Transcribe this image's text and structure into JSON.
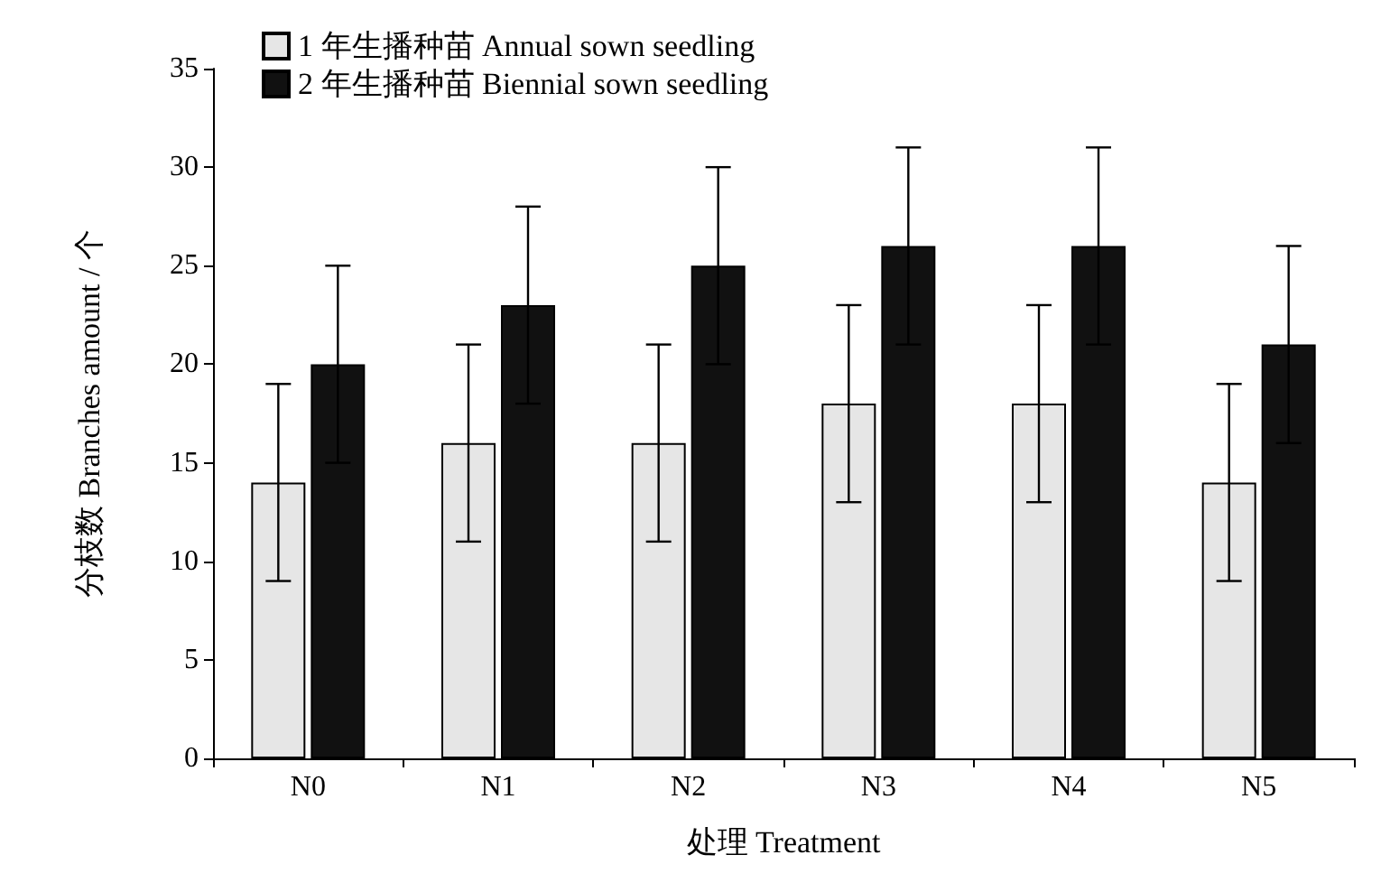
{
  "chart_data": {
    "type": "bar",
    "xlabel": "处理 Treatment",
    "ylabel": "分枝数 Branches amount / 个",
    "categories": [
      "N0",
      "N1",
      "N2",
      "N3",
      "N4",
      "N5"
    ],
    "series": [
      {
        "name": "1 年生播种苗 Annual sown seedling",
        "color": "#e6e6e6",
        "values": [
          14,
          16,
          16,
          18,
          18,
          14
        ],
        "errors": [
          5,
          5,
          5,
          5,
          5,
          5
        ]
      },
      {
        "name": "2 年生播种苗 Biennial sown seedling",
        "color": "#111111",
        "values": [
          20,
          23,
          25,
          26,
          26,
          21
        ],
        "errors": [
          5,
          5,
          5,
          5,
          5,
          5
        ]
      }
    ],
    "ylim": [
      0,
      35
    ],
    "yticks": [
      0,
      5,
      10,
      15,
      20,
      25,
      30,
      35
    ],
    "grid": false,
    "legend": "top left"
  }
}
